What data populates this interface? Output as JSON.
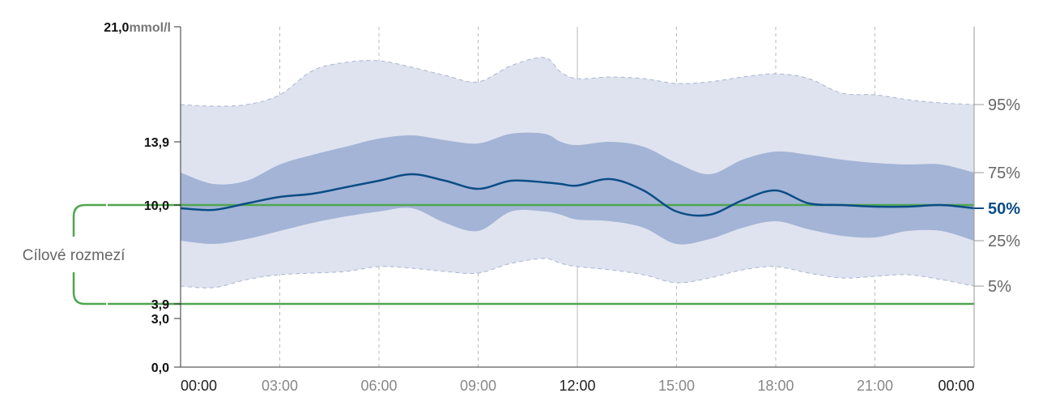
{
  "chart_data": {
    "type": "area",
    "unit": "mmol/l",
    "ylim": [
      0,
      21
    ],
    "y_ticks": [
      "0,0",
      "3,0",
      "3,9",
      "10,0",
      "13,9",
      "21,0"
    ],
    "y_tick_values": [
      0,
      3,
      3.9,
      10,
      13.9,
      21
    ],
    "x_ticks": [
      "00:00",
      "03:00",
      "06:00",
      "09:00",
      "12:00",
      "15:00",
      "18:00",
      "21:00",
      "00:00"
    ],
    "x_hours": [
      0,
      3,
      6,
      9,
      12,
      15,
      18,
      21,
      24
    ],
    "percentile_labels": {
      "p95": "95%",
      "p75": "75%",
      "p50": "50%",
      "p25": "25%",
      "p5": "5%"
    },
    "target_range": {
      "label": "Cílové rozmezí",
      "low": 3.9,
      "high": 10.0
    },
    "x": [
      0,
      1,
      2,
      3,
      4,
      5,
      6,
      7,
      8,
      9,
      10,
      11,
      11.5,
      12,
      13,
      14,
      15,
      16,
      17,
      18,
      19,
      20,
      21,
      22,
      23,
      24
    ],
    "series": [
      {
        "name": "95%",
        "values": [
          16.2,
          16.1,
          16.2,
          16.8,
          18.3,
          18.8,
          18.9,
          18.5,
          18.0,
          17.6,
          18.6,
          19.1,
          18.2,
          17.8,
          17.9,
          17.8,
          17.5,
          17.6,
          17.9,
          18.1,
          17.8,
          16.9,
          16.8,
          16.5,
          16.3,
          16.2
        ]
      },
      {
        "name": "75%",
        "values": [
          12.0,
          11.3,
          11.5,
          12.5,
          13.1,
          13.6,
          14.1,
          14.3,
          14.0,
          13.8,
          14.4,
          14.4,
          13.9,
          13.7,
          13.9,
          13.6,
          12.6,
          11.9,
          12.8,
          13.3,
          13.1,
          12.8,
          12.6,
          12.5,
          12.5,
          12.0
        ]
      },
      {
        "name": "50%",
        "values": [
          9.8,
          9.7,
          10.1,
          10.5,
          10.7,
          11.1,
          11.5,
          11.9,
          11.5,
          11.0,
          11.5,
          11.4,
          11.3,
          11.2,
          11.6,
          10.9,
          9.6,
          9.4,
          10.3,
          10.9,
          10.1,
          10.0,
          9.9,
          9.9,
          10.0,
          9.8
        ]
      },
      {
        "name": "25%",
        "values": [
          7.8,
          7.6,
          7.9,
          8.4,
          8.9,
          9.3,
          9.6,
          9.8,
          8.9,
          8.4,
          9.6,
          9.6,
          9.4,
          9.1,
          9.0,
          8.6,
          7.6,
          7.9,
          8.6,
          9.0,
          8.5,
          8.1,
          8.0,
          8.4,
          8.4,
          7.8
        ]
      },
      {
        "name": "5%",
        "values": [
          5.0,
          4.9,
          5.4,
          5.7,
          5.8,
          5.9,
          6.2,
          6.1,
          5.9,
          5.8,
          6.4,
          6.7,
          6.4,
          6.2,
          6.0,
          5.7,
          5.2,
          5.5,
          6.0,
          6.2,
          5.8,
          5.5,
          5.6,
          5.7,
          5.4,
          5.0
        ]
      }
    ],
    "colors": {
      "outer_band": "#dfe3ef",
      "outer_edge": "#a8b4d0",
      "inner_band": "#a3b4d6",
      "median": "#0b4d86",
      "target": "#4fa64f",
      "axis": "#333333",
      "grid": "#bbbbbb",
      "x_label_main": "#222222",
      "x_label_minor": "#888888"
    }
  }
}
